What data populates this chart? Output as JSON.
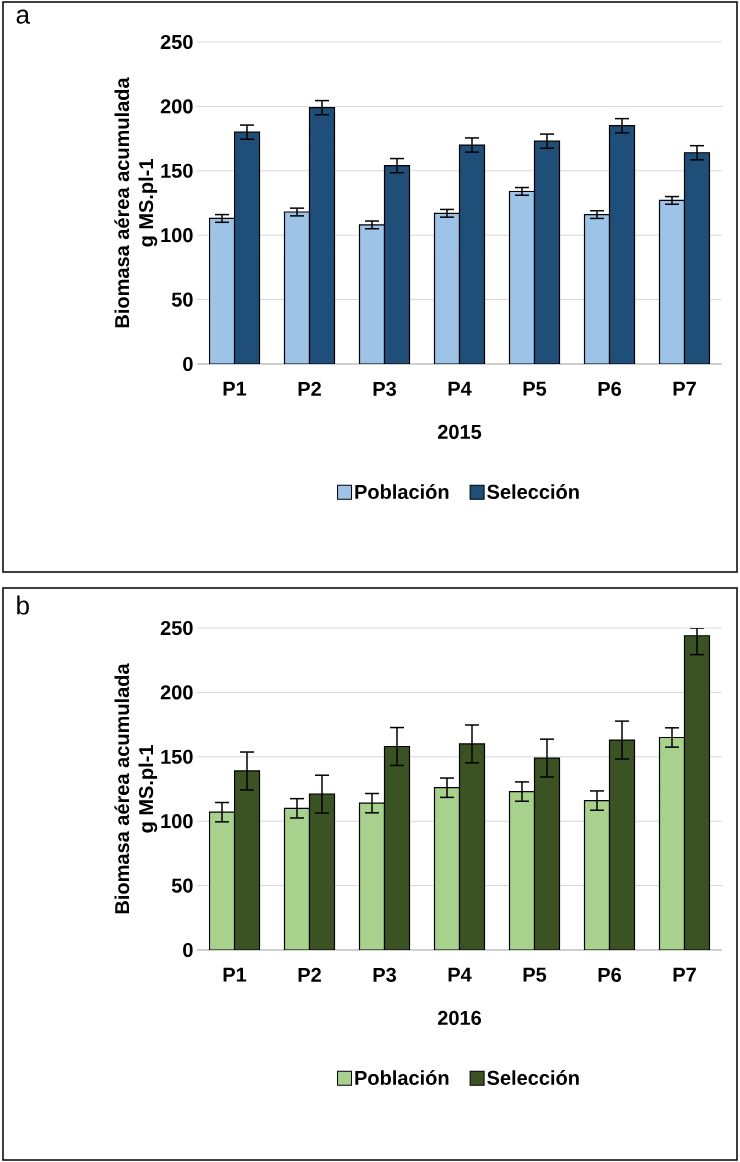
{
  "chart_data": [
    {
      "type": "bar",
      "annotations": [
        "a"
      ],
      "xlabel": "2015",
      "ylabel": "Biomasa aérea acumulada g MS.pl-1",
      "categories": [
        "P1",
        "P2",
        "P3",
        "P4",
        "P5",
        "P6",
        "P7"
      ],
      "ylim": [
        0,
        250
      ],
      "yticks": [
        0,
        50,
        100,
        150,
        200,
        250
      ],
      "grid": "y",
      "legend": "bottom",
      "series": [
        {
          "name": "Población",
          "color": "#9dc3e6",
          "values": [
            113,
            118,
            108,
            117,
            134,
            116,
            127
          ],
          "errors": [
            3,
            3,
            3,
            3,
            3,
            3,
            3
          ]
        },
        {
          "name": "Selección",
          "color": "#1f4e79",
          "values": [
            180,
            199,
            154,
            170,
            173,
            185,
            164
          ],
          "errors": [
            5.5,
            5.5,
            5.5,
            5.5,
            5.5,
            5.5,
            5.5
          ]
        }
      ]
    },
    {
      "type": "bar",
      "annotations": [
        "b"
      ],
      "xlabel": "2016",
      "ylabel": "Biomasa aérea acumulada g MS.pl-1",
      "categories": [
        "P1",
        "P2",
        "P3",
        "P4",
        "P5",
        "P6",
        "P7"
      ],
      "ylim": [
        0,
        250
      ],
      "yticks": [
        0,
        50,
        100,
        150,
        200,
        250
      ],
      "grid": "y",
      "legend": "bottom",
      "series": [
        {
          "name": "Población",
          "color": "#a9d18e",
          "values": [
            107,
            110,
            114,
            126,
            123,
            116,
            165
          ],
          "errors": [
            7.5,
            7.5,
            7.5,
            7.5,
            7.5,
            7.5,
            7.5
          ]
        },
        {
          "name": "Selección",
          "color": "#3b5323",
          "values": [
            139,
            121,
            158,
            160,
            149,
            163,
            244
          ],
          "errors": [
            14.7,
            14.7,
            14.7,
            14.7,
            14.7,
            14.7,
            [
              229.3,
              250
            ]
          ]
        }
      ]
    }
  ]
}
